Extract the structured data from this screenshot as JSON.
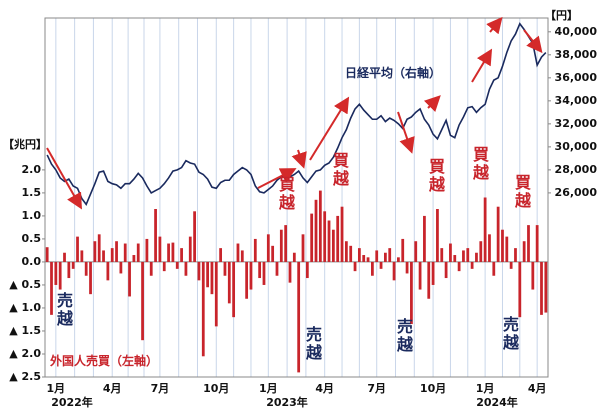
{
  "chart_data": {
    "type": "combo",
    "left_unit": "【兆円】",
    "right_unit": "【円】",
    "categories": [
      null,
      null,
      "1月",
      null,
      null,
      null,
      null,
      null,
      null,
      null,
      null,
      null,
      null,
      null,
      null,
      "4月",
      null,
      null,
      null,
      null,
      null,
      null,
      null,
      null,
      null,
      null,
      "7月",
      null,
      null,
      null,
      null,
      null,
      null,
      null,
      null,
      null,
      null,
      null,
      null,
      "10月",
      null,
      null,
      null,
      null,
      null,
      null,
      null,
      null,
      null,
      null,
      null,
      "1月",
      null,
      null,
      null,
      null,
      null,
      null,
      null,
      null,
      null,
      null,
      null,
      null,
      "4月",
      null,
      null,
      null,
      null,
      null,
      null,
      null,
      null,
      null,
      null,
      null,
      "7月",
      null,
      null,
      null,
      null,
      null,
      null,
      null,
      null,
      null,
      null,
      null,
      null,
      "10月",
      null,
      null,
      null,
      null,
      null,
      null,
      null,
      null,
      null,
      null,
      null,
      "1月",
      null,
      null,
      null,
      null,
      null,
      null,
      null,
      null,
      null,
      null,
      null,
      "4月",
      null,
      null
    ],
    "x_group_labels": [
      "2022年",
      "2023年",
      "2024年"
    ],
    "series": [
      {
        "name": "外国人売買（左軸）",
        "type": "bar",
        "axis": "y",
        "color": "#c8242b",
        "values": [
          0.32,
          -1.15,
          -0.5,
          -0.6,
          0.2,
          -0.35,
          -0.15,
          0.55,
          0.25,
          -0.3,
          -0.7,
          0.45,
          0.6,
          0.25,
          -0.4,
          0.3,
          0.45,
          -0.25,
          0.4,
          -0.75,
          0.15,
          0.4,
          -1.7,
          0.5,
          -0.3,
          1.15,
          0.55,
          -0.2,
          0.4,
          0.42,
          -0.15,
          0.3,
          -0.3,
          0.55,
          1.1,
          -0.4,
          -2.05,
          -0.55,
          -0.7,
          -1.4,
          0.3,
          -0.3,
          -0.9,
          -1.2,
          0.4,
          0.25,
          -0.8,
          -0.6,
          0.5,
          -0.35,
          -0.5,
          0.6,
          0.35,
          -0.3,
          0.7,
          0.8,
          -0.45,
          0.2,
          -2.4,
          0.6,
          -0.35,
          1.05,
          1.35,
          1.55,
          1.1,
          0.9,
          0.7,
          1.0,
          1.2,
          0.45,
          0.35,
          -0.2,
          0.3,
          0.15,
          0.1,
          -0.3,
          0.25,
          -0.15,
          0.2,
          0.3,
          -0.4,
          0.1,
          0.5,
          -0.25,
          -1.35,
          0.45,
          -0.6,
          1.0,
          -0.8,
          -0.5,
          1.15,
          0.3,
          -0.35,
          0.4,
          0.15,
          -0.2,
          0.25,
          0.3,
          -0.15,
          0.2,
          0.45,
          1.4,
          0.6,
          -0.3,
          1.2,
          0.7,
          0.55,
          -0.15,
          0.3,
          -1.2,
          0.45,
          0.8,
          -0.6,
          0.8,
          -1.15,
          -1.1
        ]
      },
      {
        "name": "日経平均（右軸）",
        "type": "line",
        "axis": "y2",
        "color": "#1a2a5e",
        "values": [
          29300,
          28500,
          28000,
          27300,
          27000,
          27200,
          26600,
          26400,
          25500,
          25000,
          25900,
          26800,
          27800,
          27900,
          27000,
          26800,
          26700,
          26400,
          26800,
          26800,
          27200,
          27700,
          27300,
          26600,
          26000,
          26200,
          26400,
          26800,
          27300,
          27900,
          28000,
          28200,
          28800,
          28600,
          28500,
          27800,
          27600,
          27200,
          26500,
          26400,
          26900,
          27100,
          27100,
          27600,
          27900,
          28200,
          28000,
          27600,
          26600,
          26100,
          26000,
          26300,
          26600,
          27100,
          27400,
          27500,
          27400,
          27600,
          27900,
          27300,
          26900,
          27400,
          27900,
          28000,
          28400,
          28600,
          29100,
          29900,
          30800,
          31500,
          32500,
          33300,
          33700,
          33200,
          32800,
          32400,
          32400,
          32700,
          32200,
          32500,
          32300,
          32000,
          31600,
          32400,
          32600,
          33000,
          33300,
          32400,
          31900,
          31100,
          30700,
          31500,
          32300,
          31000,
          30800,
          31900,
          32600,
          33400,
          33500,
          33000,
          33400,
          33700,
          35000,
          35800,
          36000,
          37000,
          38200,
          39200,
          39800,
          40700,
          40200,
          39600,
          39000,
          37100,
          37800,
          38200
        ]
      }
    ],
    "ylim": [
      -2.5,
      5.3
    ],
    "yticks": [
      {
        "value": 2.0,
        "label": "2.0"
      },
      1.5,
      {
        "value": 1.0,
        "label": "1.0"
      },
      0.5,
      {
        "value": 0,
        "label": "0.0"
      },
      {
        "value": -0.5,
        "label": "▲ 0.5"
      },
      {
        "value": -1.0,
        "label": "▲ 1.0"
      },
      {
        "value": -1.5,
        "label": "▲ 1.5"
      },
      {
        "value": -2.0,
        "label": "▲ 2.0"
      },
      {
        "value": -2.5,
        "label": "▲ 2.5"
      }
    ],
    "y2lim": [
      10000,
      41200
    ],
    "y2ticks": [
      {
        "value": 26000,
        "label": "26,000"
      },
      {
        "value": 28000,
        "label": "28,000"
      },
      {
        "value": 30000,
        "label": "30,000"
      },
      {
        "value": 32000,
        "label": "32,000"
      },
      {
        "value": 34000,
        "label": "34,000"
      },
      {
        "value": 36000,
        "label": "36,000"
      },
      {
        "value": 38000,
        "label": "38,000"
      },
      {
        "value": 40000,
        "label": "40,000"
      }
    ],
    "annotations": [
      {
        "text": "売越",
        "color": "#1a2a5e"
      },
      {
        "text": "売越",
        "color": "#1a2a5e"
      },
      {
        "text": "売越",
        "color": "#1a2a5e"
      },
      {
        "text": "売越",
        "color": "#1a2a5e"
      },
      {
        "text": "買越",
        "color": "#c8242b"
      },
      {
        "text": "買越",
        "color": "#c8242b"
      },
      {
        "text": "買越",
        "color": "#c8242b"
      },
      {
        "text": "買越",
        "color": "#c8242b"
      },
      {
        "text": "買越",
        "color": "#c8242b"
      }
    ]
  }
}
